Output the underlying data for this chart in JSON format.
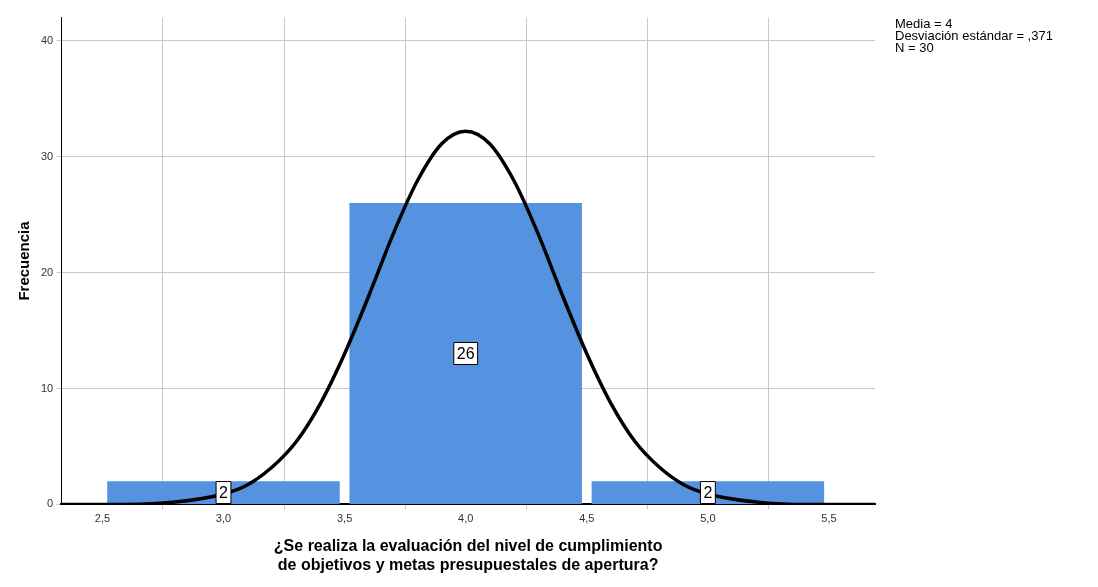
{
  "chart_data": {
    "type": "histogram",
    "xlabel": "¿Se realiza la evaluación del nivel de cumplimiento de objetivos y metas presupuestales de apertura?",
    "ylabel": "Frecuencia",
    "bins": [
      2.5,
      3.5,
      4.5,
      5.5
    ],
    "values": [
      2,
      26,
      2
    ],
    "color": "#5592e0",
    "value_labels": [
      "2",
      "26",
      "2"
    ],
    "series": [
      {
        "type": "line",
        "color": "#000000",
        "x": [
          2.33,
          2.6,
          2.8,
          3.0,
          3.1,
          3.2,
          3.3,
          3.4,
          3.5,
          3.6,
          3.7,
          3.8,
          3.9,
          4.0,
          4.1,
          4.2,
          4.3,
          4.4,
          4.5,
          4.6,
          4.7,
          4.8,
          4.9,
          5.0,
          5.2,
          5.4,
          5.69
        ],
        "values": [
          0,
          0,
          0.2,
          0.9,
          1.7,
          3.2,
          5.4,
          8.7,
          13.0,
          18.0,
          23.3,
          27.9,
          31.1,
          32.2,
          31.1,
          27.9,
          23.3,
          18.0,
          13.0,
          8.7,
          5.4,
          3.2,
          1.7,
          0.9,
          0.2,
          0,
          0
        ]
      }
    ],
    "xlim": [
      2.33,
      5.69
    ],
    "xticks": [
      {
        "value": 2.5,
        "label": "2,5"
      },
      {
        "value": 3,
        "label": "3,0"
      },
      {
        "value": 3.5,
        "label": "3,5"
      },
      {
        "value": 4,
        "label": "4,0"
      },
      {
        "value": 4.5,
        "label": "4,5"
      },
      {
        "value": 5,
        "label": "5,0"
      },
      {
        "value": 5.5,
        "label": "5,5"
      }
    ],
    "ylim": [
      0,
      42
    ],
    "yticks": [
      0,
      10,
      20,
      30,
      40
    ],
    "grid": true,
    "legend": false,
    "annotations": [
      "Media = 4",
      "Desviación estándar = ,371",
      "N = 30"
    ]
  }
}
